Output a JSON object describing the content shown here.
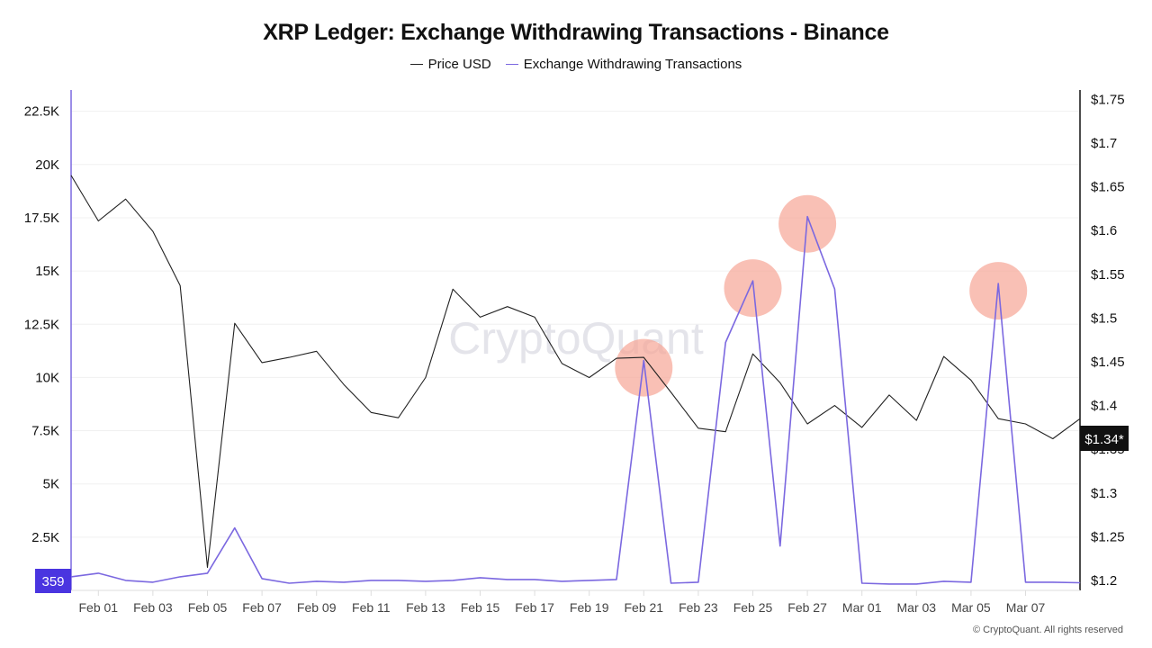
{
  "chart_data": {
    "type": "line",
    "title": "XRP Ledger: Exchange Withdrawing Transactions - Binance",
    "x": [
      "Jan 31",
      "Feb 01",
      "Feb 02",
      "Feb 03",
      "Feb 04",
      "Feb 05",
      "Feb 06",
      "Feb 07",
      "Feb 08",
      "Feb 09",
      "Feb 10",
      "Feb 11",
      "Feb 12",
      "Feb 13",
      "Feb 14",
      "Feb 15",
      "Feb 16",
      "Feb 17",
      "Feb 18",
      "Feb 19",
      "Feb 20",
      "Feb 21",
      "Feb 22",
      "Feb 23",
      "Feb 24",
      "Feb 25",
      "Feb 26",
      "Feb 27",
      "Feb 28",
      "Mar 01",
      "Mar 02",
      "Mar 03",
      "Mar 04",
      "Mar 05",
      "Mar 06",
      "Mar 07",
      "Mar 08",
      "Mar 09"
    ],
    "x_tick_labels": [
      "Feb 01",
      "Feb 03",
      "Feb 05",
      "Feb 07",
      "Feb 09",
      "Feb 11",
      "Feb 13",
      "Feb 15",
      "Feb 17",
      "Feb 19",
      "Feb 21",
      "Feb 23",
      "Feb 25",
      "Feb 27",
      "Mar 01",
      "Mar 03",
      "Mar 05",
      "Mar 07"
    ],
    "series": [
      {
        "name": "Price USD",
        "axis": "right",
        "color": "#222222",
        "values": [
          1.662,
          1.61,
          1.635,
          1.598,
          1.536,
          1.214,
          1.493,
          1.448,
          1.454,
          1.461,
          1.423,
          1.391,
          1.385,
          1.431,
          1.532,
          1.5,
          1.512,
          1.5,
          1.447,
          1.431,
          1.453,
          1.454,
          1.414,
          1.373,
          1.369,
          1.458,
          1.425,
          1.378,
          1.399,
          1.374,
          1.411,
          1.382,
          1.455,
          1.428,
          1.384,
          1.378,
          1.361,
          1.384
        ]
      },
      {
        "name": "Exchange Withdrawing Transactions",
        "axis": "left",
        "color": "#7b68e0",
        "values": [
          638,
          808,
          468,
          383,
          638,
          808,
          2933,
          553,
          340,
          425,
          383,
          468,
          468,
          425,
          468,
          595,
          510,
          510,
          425,
          468,
          510,
          10795,
          340,
          383,
          11645,
          14535,
          2083,
          17553,
          14153,
          340,
          298,
          298,
          425,
          383,
          14408,
          383,
          383,
          359
        ]
      }
    ],
    "left_axis": {
      "ylim": [
        0,
        23500
      ],
      "ticks": [
        0,
        2500,
        5000,
        7500,
        10000,
        12500,
        15000,
        17500,
        20000,
        22500
      ],
      "tick_labels": [
        "0",
        "2.5K",
        "5K",
        "7.5K",
        "10K",
        "12.5K",
        "15K",
        "17.5K",
        "20K",
        "22.5K"
      ]
    },
    "right_axis": {
      "ylim": [
        1.19,
        1.765
      ],
      "ticks": [
        1.2,
        1.25,
        1.3,
        1.35,
        1.4,
        1.45,
        1.5,
        1.55,
        1.6,
        1.65,
        1.7,
        1.75
      ],
      "tick_labels": [
        "$1.2",
        "$1.25",
        "$1.3",
        "$1.35",
        "$1.4",
        "$1.45",
        "$1.5",
        "$1.55",
        "$1.6",
        "$1.65",
        "$1.7",
        "$1.75"
      ]
    },
    "current_value_labels": {
      "left": "359",
      "right": "$1.34*",
      "left_color": "#4a35e0",
      "right_color": "#111111"
    },
    "highlight_dates": [
      "Feb 21",
      "Feb 25",
      "Feb 27",
      "Mar 06"
    ],
    "highlight_color": "#f7a596",
    "grid": true,
    "legend_placement": "top-center",
    "watermark": "CryptoQuant",
    "copyright": "© CryptoQuant. All rights reserved"
  }
}
